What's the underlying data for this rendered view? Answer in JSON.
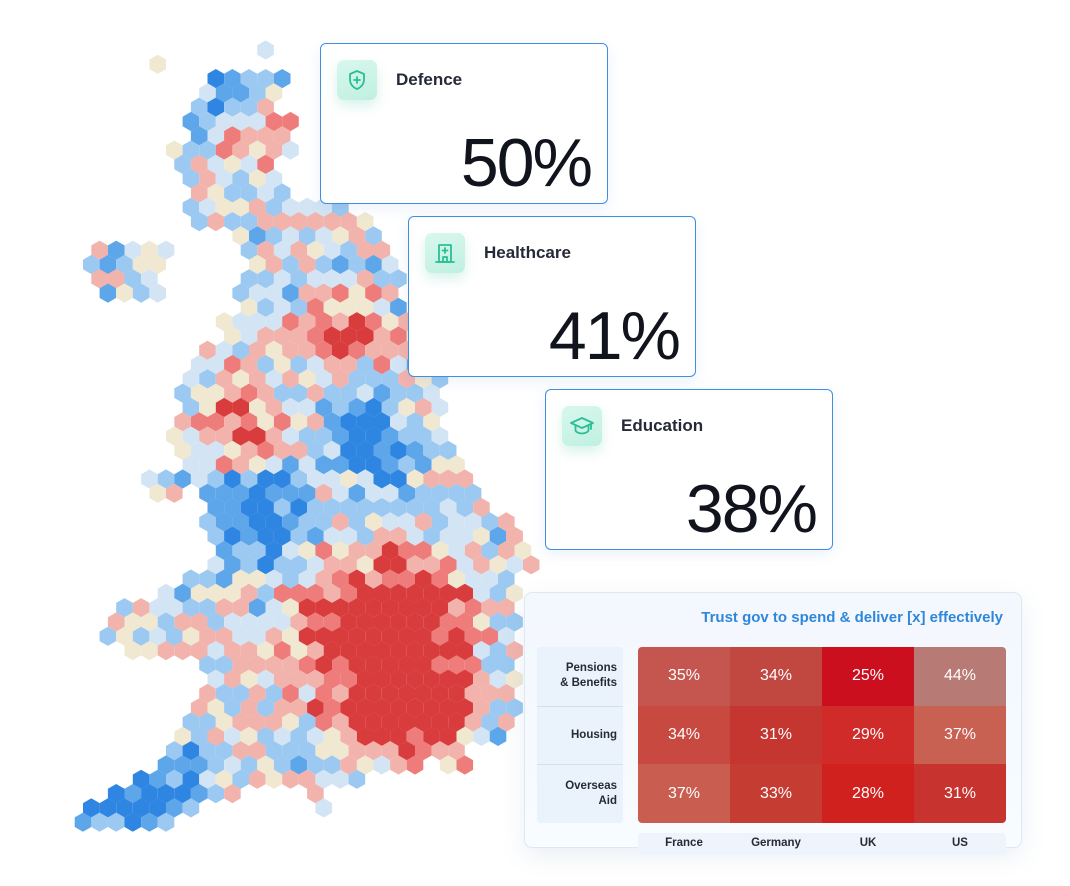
{
  "cards": [
    {
      "id": "defence",
      "title": "Defence",
      "value": "50%",
      "icon": "shield-plus-icon"
    },
    {
      "id": "healthcare",
      "title": "Healthcare",
      "value": "41%",
      "icon": "hospital-icon"
    },
    {
      "id": "education",
      "title": "Education",
      "value": "38%",
      "icon": "graduation-cap-icon"
    }
  ],
  "colors": {
    "card_border": "#3f8fe0",
    "icon_teal": "#2bbf95",
    "title_blue": "#2f87da",
    "hex_palette": [
      "#d93c3c",
      "#ee7c7a",
      "#f3b3ad",
      "#f1e8d2",
      "#d3e5f4",
      "#9bc9f1",
      "#5ea6ea",
      "#2f86e2"
    ]
  },
  "chart_data": {
    "type": "heatmap",
    "title": "Trust gov to spend & deliver [x] effectively",
    "rows": [
      "Pensions\n& Benefits",
      "Housing",
      "Overseas\nAid"
    ],
    "columns": [
      "France",
      "Germany",
      "UK",
      "US"
    ],
    "values": [
      [
        35,
        34,
        25,
        44
      ],
      [
        34,
        31,
        29,
        37
      ],
      [
        37,
        33,
        28,
        31
      ]
    ],
    "labels": [
      [
        "35%",
        "34%",
        "25%",
        "44%"
      ],
      [
        "34%",
        "31%",
        "29%",
        "37%"
      ],
      [
        "37%",
        "33%",
        "28%",
        "31%"
      ]
    ],
    "colors": [
      [
        "#c4564f",
        "#c14840",
        "#cc0f1e",
        "#b87a74"
      ],
      [
        "#c8493f",
        "#c4362f",
        "#d02b28",
        "#c86152"
      ],
      [
        "#c95e50",
        "#c53c33",
        "#d0211f",
        "#c73430"
      ]
    ]
  }
}
